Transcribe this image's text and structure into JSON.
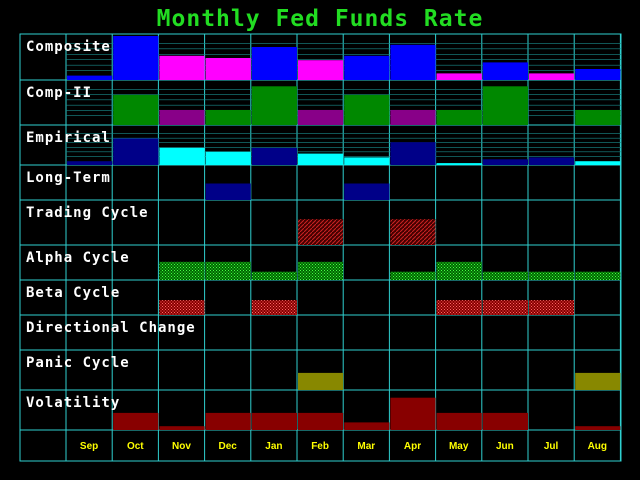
{
  "chart_data": {
    "type": "heatmap",
    "title": "Monthly Fed Funds Rate",
    "months": [
      "Sep",
      "Oct",
      "Nov",
      "Dec",
      "Jan",
      "Feb",
      "Mar",
      "Apr",
      "May",
      "Jun",
      "Jul",
      "Aug"
    ],
    "rows": [
      {
        "name": "Composite",
        "kind": "bars",
        "values": [
          0.1,
          1.0,
          0.55,
          0.5,
          0.75,
          0.45,
          0.55,
          0.8,
          0.15,
          0.4,
          0.15,
          0.25
        ],
        "colors": [
          "#0000ff",
          "#0000ff",
          "#ff00ff",
          "#ff00ff",
          "#0000ff",
          "#ff00ff",
          "#0000ff",
          "#0000ff",
          "#ff00ff",
          "#0000ff",
          "#ff00ff",
          "#0000ff"
        ]
      },
      {
        "name": "Comp-II",
        "kind": "bars",
        "values": [
          0,
          0.7,
          0.35,
          0.35,
          0.9,
          0.35,
          0.7,
          0.35,
          0.35,
          0.9,
          0,
          0.35
        ],
        "colors": [
          "#008800",
          "#008800",
          "#880088",
          "#008800",
          "#008800",
          "#880088",
          "#008800",
          "#880088",
          "#008800",
          "#008800",
          "#008800",
          "#008800"
        ]
      },
      {
        "name": "Empirical",
        "kind": "bars",
        "values": [
          0.1,
          0.7,
          0.45,
          0.35,
          0.45,
          0.3,
          0.2,
          0.6,
          0.05,
          0.15,
          0.2,
          0.1
        ],
        "colors": [
          "#000088",
          "#000088",
          "#00ffff",
          "#00ffff",
          "#000088",
          "#00ffff",
          "#00ffff",
          "#000088",
          "#00ffff",
          "#000088",
          "#000088",
          "#00ffff"
        ]
      },
      {
        "name": "Long-Term",
        "kind": "bars",
        "values": [
          0,
          0,
          0,
          0.5,
          0,
          0,
          0.5,
          0,
          0,
          0,
          0,
          0
        ],
        "colors": [
          "#000088",
          "#000088",
          "#000088",
          "#000088",
          "#000088",
          "#000088",
          "#000088",
          "#000088",
          "#000088",
          "#000088",
          "#000088",
          "#000088"
        ]
      },
      {
        "name": "Trading Cycle",
        "kind": "pattern",
        "pattern": "redhatch",
        "values": [
          0,
          0,
          0,
          0,
          0,
          0.6,
          0,
          0.6,
          0,
          0,
          0,
          0
        ]
      },
      {
        "name": "Alpha Cycle",
        "kind": "pattern",
        "pattern": "greencheck",
        "values": [
          0,
          0,
          0.55,
          0.55,
          0.25,
          0.55,
          0,
          0.25,
          0.55,
          0.25,
          0.25,
          0.25
        ]
      },
      {
        "name": "Beta Cycle",
        "kind": "pattern",
        "pattern": "redcheck",
        "values": [
          0,
          0,
          0.45,
          0,
          0.45,
          0,
          0,
          0,
          0.45,
          0.45,
          0.45,
          0
        ]
      },
      {
        "name": "Directional Change",
        "kind": "bars",
        "values": [
          0,
          0,
          0,
          0,
          0,
          0,
          0,
          0,
          0,
          0,
          0,
          0
        ],
        "colors": [
          "#000000",
          "#000000",
          "#000000",
          "#000000",
          "#000000",
          "#000000",
          "#000000",
          "#000000",
          "#000000",
          "#000000",
          "#000000",
          "#000000"
        ]
      },
      {
        "name": "Panic Cycle",
        "kind": "bars",
        "values": [
          0,
          0,
          0,
          0,
          0,
          0.45,
          0,
          0,
          0,
          0,
          0,
          0.45
        ],
        "colors": [
          "#888800",
          "#888800",
          "#888800",
          "#888800",
          "#888800",
          "#888800",
          "#888800",
          "#888800",
          "#888800",
          "#888800",
          "#888800",
          "#888800"
        ]
      },
      {
        "name": "Volatility",
        "kind": "bars",
        "values": [
          0,
          0.45,
          0.1,
          0.45,
          0.45,
          0.45,
          0.2,
          0.85,
          0.45,
          0.45,
          0,
          0.1
        ],
        "colors": [
          "#880000",
          "#880000",
          "#880000",
          "#880000",
          "#880000",
          "#880000",
          "#880000",
          "#880000",
          "#880000",
          "#880000",
          "#880000",
          "#880000"
        ]
      }
    ]
  }
}
